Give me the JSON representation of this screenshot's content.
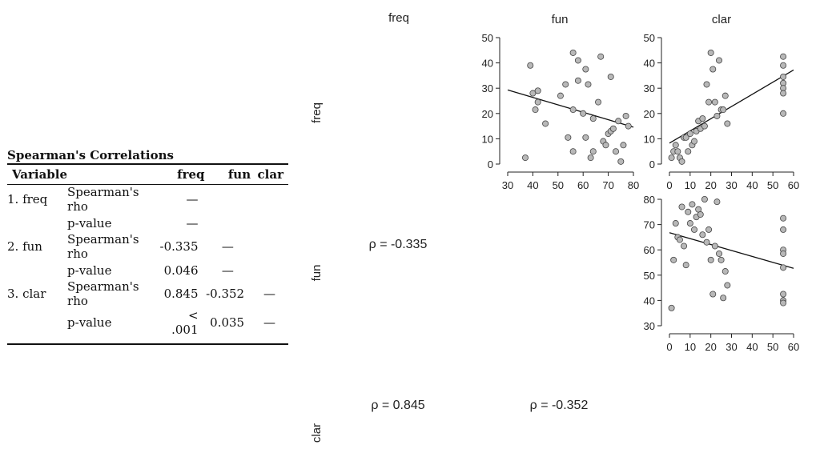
{
  "table": {
    "title": "Spearman's Correlations",
    "headers": [
      "Variable",
      "",
      "freq",
      "fun",
      "clar"
    ],
    "rows": [
      {
        "var": "1. freq",
        "stat": "Spearman's rho",
        "freq": "—",
        "fun": "",
        "clar": ""
      },
      {
        "var": "",
        "stat": "p-value",
        "freq": "—",
        "fun": "",
        "clar": ""
      },
      {
        "var": "2. fun",
        "stat": "Spearman's rho",
        "freq": "-0.335",
        "fun": "—",
        "clar": ""
      },
      {
        "var": "",
        "stat": "p-value",
        "freq": "0.046",
        "fun": "—",
        "clar": ""
      },
      {
        "var": "3. clar",
        "stat": "Spearman's rho",
        "freq": "0.845",
        "fun": "-0.352",
        "clar": "—"
      },
      {
        "var": "",
        "stat": "p-value",
        "freq": "< .001",
        "fun": "0.035",
        "clar": "—"
      }
    ]
  },
  "matrix": {
    "col_labels": [
      "freq",
      "fun",
      "clar"
    ],
    "row_labels": [
      "freq",
      "fun",
      "clar"
    ],
    "rho_labels": [
      {
        "id": "fun-freq",
        "text": "ρ = -0.335"
      },
      {
        "id": "clar-freq",
        "text": "ρ = 0.845"
      },
      {
        "id": "clar-fun",
        "text": "ρ = -0.352"
      }
    ]
  },
  "chart_data": [
    {
      "type": "scatter",
      "id": "freq-vs-fun",
      "x_var": "fun",
      "y_var": "freq",
      "xlim": [
        30,
        80
      ],
      "ylim": [
        0,
        50
      ],
      "xticks": [
        30,
        40,
        50,
        60,
        70,
        80
      ],
      "yticks": [
        0,
        10,
        20,
        30,
        40,
        50
      ],
      "grid": false,
      "points": [
        [
          37,
          2.5
        ],
        [
          39,
          39
        ],
        [
          40,
          28
        ],
        [
          41,
          21.5
        ],
        [
          42,
          24.5
        ],
        [
          42,
          29
        ],
        [
          45,
          16
        ],
        [
          51,
          27
        ],
        [
          53,
          31.5
        ],
        [
          54,
          10.5
        ],
        [
          56,
          44
        ],
        [
          56,
          21.5
        ],
        [
          56,
          5
        ],
        [
          58,
          41
        ],
        [
          58,
          33
        ],
        [
          60,
          20
        ],
        [
          61,
          37.5
        ],
        [
          61,
          10.5
        ],
        [
          62,
          31.5
        ],
        [
          63,
          2.5
        ],
        [
          64,
          18
        ],
        [
          64,
          5
        ],
        [
          66,
          24.5
        ],
        [
          67,
          42.5
        ],
        [
          68,
          9
        ],
        [
          69,
          7.5
        ],
        [
          70,
          12
        ],
        [
          71,
          34.5
        ],
        [
          71,
          13
        ],
        [
          72,
          14
        ],
        [
          73,
          5
        ],
        [
          74,
          17
        ],
        [
          75,
          1
        ],
        [
          76,
          7.5
        ],
        [
          77,
          19
        ],
        [
          78,
          15
        ]
      ],
      "fit_line": [
        [
          30,
          29.3
        ],
        [
          80,
          14.6
        ]
      ]
    },
    {
      "type": "scatter",
      "id": "freq-vs-clar",
      "x_var": "clar",
      "y_var": "freq",
      "xlim": [
        0,
        60
      ],
      "ylim": [
        0,
        50
      ],
      "xticks": [
        0,
        10,
        20,
        30,
        40,
        50,
        60
      ],
      "yticks": [
        0,
        10,
        20,
        30,
        40,
        50
      ],
      "grid": false,
      "points": [
        [
          1,
          2.5
        ],
        [
          2,
          5
        ],
        [
          3,
          7.5
        ],
        [
          4,
          5
        ],
        [
          5,
          2.5
        ],
        [
          6,
          1
        ],
        [
          7,
          10.5
        ],
        [
          8,
          10.5
        ],
        [
          9,
          5
        ],
        [
          10,
          12
        ],
        [
          11,
          7.5
        ],
        [
          12,
          9
        ],
        [
          13,
          13
        ],
        [
          14,
          17
        ],
        [
          15,
          14
        ],
        [
          16,
          18
        ],
        [
          17,
          15
        ],
        [
          18,
          31.5
        ],
        [
          19,
          24.5
        ],
        [
          20,
          44
        ],
        [
          21,
          37.5
        ],
        [
          22,
          24.5
        ],
        [
          23,
          19
        ],
        [
          24,
          41
        ],
        [
          25,
          21.5
        ],
        [
          26,
          21.5
        ],
        [
          27,
          27
        ],
        [
          28,
          16
        ],
        [
          55,
          42.5
        ],
        [
          55,
          39
        ],
        [
          55,
          34.5
        ],
        [
          55,
          32
        ],
        [
          55,
          30
        ],
        [
          55,
          28
        ],
        [
          55,
          20
        ]
      ],
      "fit_line": [
        [
          0,
          8.3
        ],
        [
          60,
          37.2
        ]
      ]
    },
    {
      "type": "scatter",
      "id": "fun-vs-clar",
      "x_var": "clar",
      "y_var": "fun",
      "xlim": [
        0,
        60
      ],
      "ylim": [
        30,
        80
      ],
      "xticks": [
        0,
        10,
        20,
        30,
        40,
        50,
        60
      ],
      "yticks": [
        30,
        40,
        50,
        60,
        70,
        80
      ],
      "grid": false,
      "points": [
        [
          1,
          37
        ],
        [
          2,
          56
        ],
        [
          3,
          70.5
        ],
        [
          4,
          65
        ],
        [
          5,
          64
        ],
        [
          6,
          77
        ],
        [
          7,
          61.5
        ],
        [
          8,
          54
        ],
        [
          9,
          75
        ],
        [
          10,
          70.5
        ],
        [
          11,
          78
        ],
        [
          12,
          68
        ],
        [
          13,
          73
        ],
        [
          14,
          76
        ],
        [
          15,
          74
        ],
        [
          16,
          66
        ],
        [
          17,
          80
        ],
        [
          18,
          63
        ],
        [
          19,
          68
        ],
        [
          20,
          56
        ],
        [
          21,
          42.5
        ],
        [
          22,
          61.5
        ],
        [
          23,
          79
        ],
        [
          24,
          58.5
        ],
        [
          25,
          56
        ],
        [
          26,
          41
        ],
        [
          27,
          51.5
        ],
        [
          28,
          46
        ],
        [
          55,
          72.5
        ],
        [
          55,
          68
        ],
        [
          55,
          60
        ],
        [
          55,
          58.5
        ],
        [
          55,
          53
        ],
        [
          55,
          42.5
        ],
        [
          55,
          40
        ],
        [
          55,
          39
        ]
      ],
      "fit_line": [
        [
          0,
          66.8
        ],
        [
          60,
          52.7
        ]
      ]
    }
  ]
}
